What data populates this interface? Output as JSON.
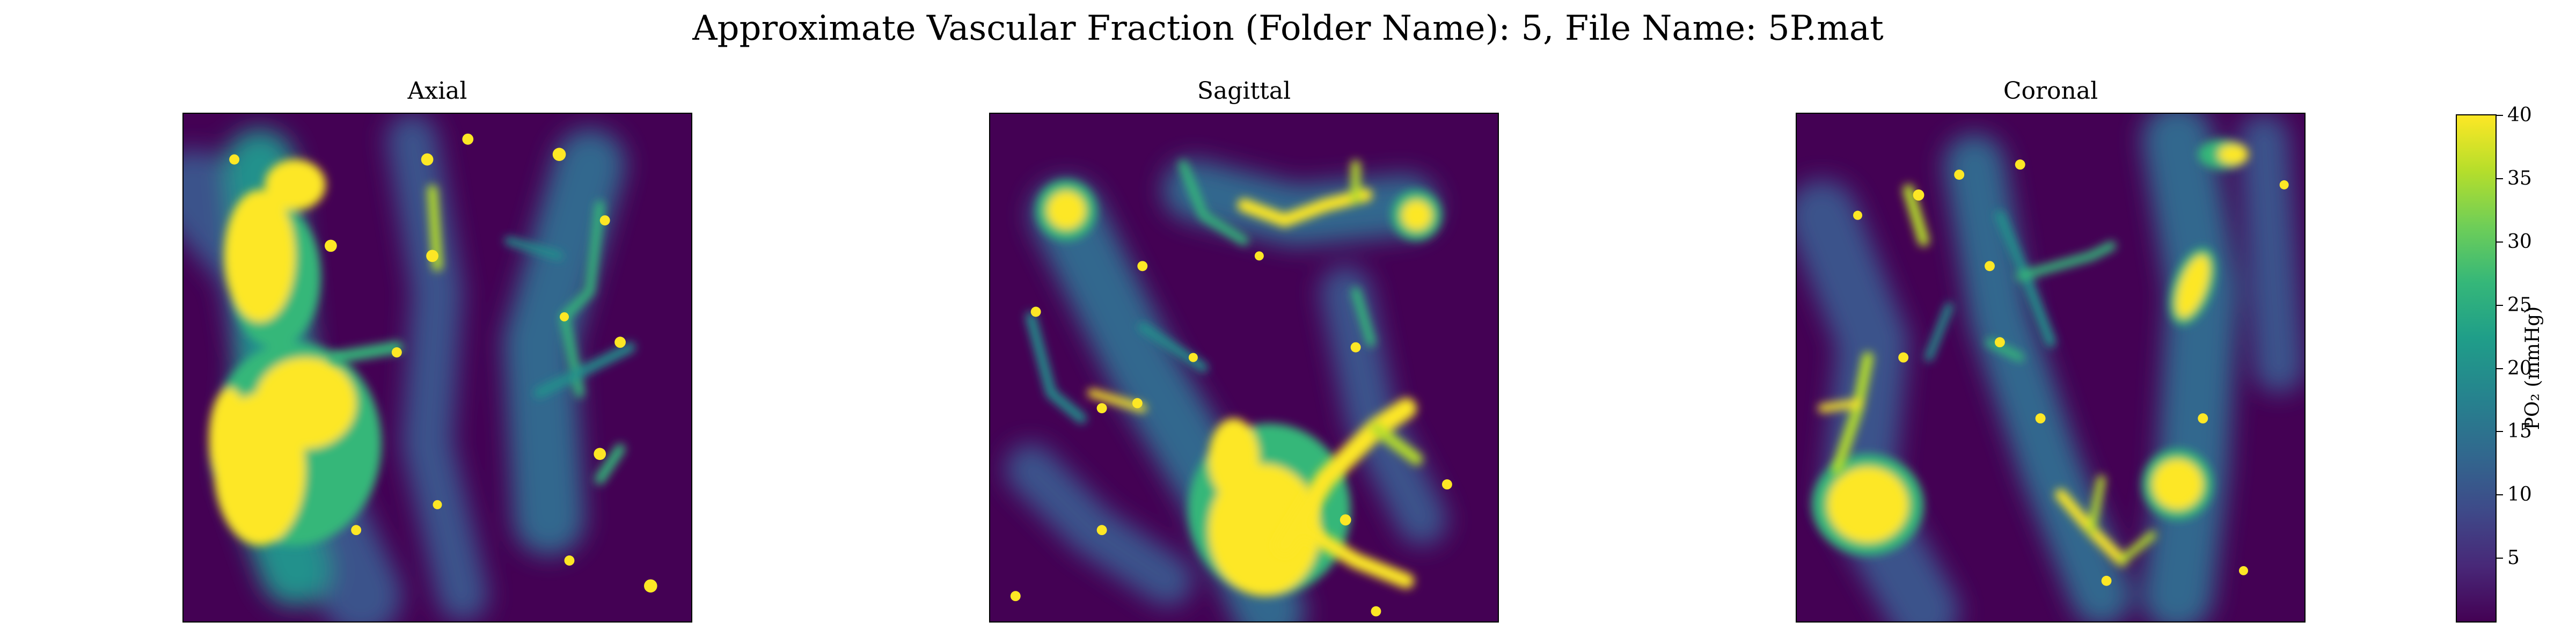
{
  "figure": {
    "suptitle": "Approximate Vascular Fraction (Folder Name): 5, File Name: 5P.mat"
  },
  "chart_data": {
    "type": "heatmap",
    "colormap": "viridis",
    "panels": [
      {
        "title": "Axial"
      },
      {
        "title": "Sagittal"
      },
      {
        "title": "Coronal"
      }
    ],
    "colorbar": {
      "label": "PO₂ (mmHg)",
      "range": [
        0,
        40
      ],
      "ticks": [
        "5",
        "10",
        "15",
        "20",
        "25",
        "30",
        "35",
        "40"
      ]
    }
  }
}
